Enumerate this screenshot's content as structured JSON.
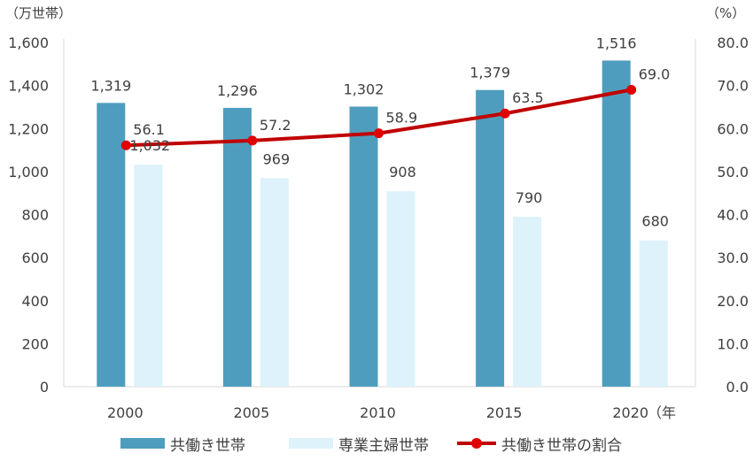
{
  "chart_data": {
    "type": "bar",
    "categories": [
      "2000",
      "2005",
      "2010",
      "2015",
      "2020"
    ],
    "x_unit_label": "（年",
    "left_axis": {
      "unit_label": "（万世帯）",
      "range": [
        0,
        1600
      ],
      "ticks": [
        "0",
        "200",
        "400",
        "600",
        "800",
        "1,000",
        "1,200",
        "1,400",
        "1,600"
      ]
    },
    "right_axis": {
      "unit_label": "（%）",
      "range": [
        0.0,
        80.0
      ],
      "ticks": [
        "0.0",
        "10.0",
        "20.0",
        "30.0",
        "40.0",
        "50.0",
        "60.0",
        "70.0",
        "80.0"
      ]
    },
    "series": [
      {
        "name": "共働き世帯",
        "type": "bar",
        "axis": "left",
        "color": "#4F9DBE",
        "values": [
          1319,
          1296,
          1302,
          1379,
          1516
        ],
        "labels": [
          "1,319",
          "1,296",
          "1,302",
          "1,379",
          "1,516"
        ]
      },
      {
        "name": "専業主婦世帯",
        "type": "bar",
        "axis": "left",
        "color": "#DDF2FB",
        "values": [
          1032,
          969,
          908,
          790,
          680
        ],
        "labels": [
          "1,032",
          "969",
          "908",
          "790",
          "680"
        ]
      },
      {
        "name": "共働き世帯の割合",
        "type": "line",
        "axis": "right",
        "color": "#C00000",
        "values": [
          56.1,
          57.2,
          58.9,
          63.5,
          69.0
        ],
        "labels": [
          "56.1",
          "57.2",
          "58.9",
          "63.5",
          "69.0"
        ]
      }
    ],
    "grid": false,
    "legend_position": "bottom"
  }
}
